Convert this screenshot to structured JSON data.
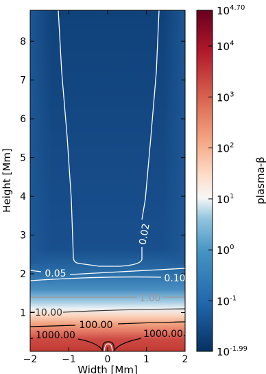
{
  "chart_data": {
    "type": "heatmap",
    "xlabel": "Width [Mm]",
    "ylabel": "Height [Mm]",
    "xlim": [
      -2,
      2
    ],
    "ylim": [
      0,
      8.8
    ],
    "x_ticks": [
      "−2",
      "−1",
      "0",
      "1",
      "2"
    ],
    "x_tick_values": [
      -2,
      -1,
      0,
      1,
      2
    ],
    "y_ticks": [
      "1",
      "2",
      "3",
      "4",
      "5",
      "6",
      "7",
      "8"
    ],
    "y_tick_values": [
      1,
      2,
      3,
      4,
      5,
      6,
      7,
      8
    ],
    "colorbar": {
      "label": "plasma-β",
      "scale": "log",
      "min_exponent": -1.99,
      "max_exponent": 4.7,
      "colormap": "RdBu_r",
      "tick_exponents": [
        "-1.99",
        "-1",
        "0",
        "1",
        "2",
        "3",
        "4",
        "4.70"
      ],
      "tick_values": [
        -1.99,
        -1,
        0,
        1,
        2,
        3,
        4,
        4.7
      ]
    },
    "contours": [
      {
        "label": "0.02",
        "level": 0.02,
        "color": "#ffffff"
      },
      {
        "label": "0.05",
        "level": 0.05,
        "color": "#ffffff"
      },
      {
        "label": "0.10",
        "level": 0.1,
        "color": "#ffffff"
      },
      {
        "label": "1.00",
        "level": 1.0,
        "color": "#9a9a9a"
      },
      {
        "label": "10.00",
        "level": 10.0,
        "color": "#222222"
      },
      {
        "label": "100.00",
        "level": 100.0,
        "color": "#000000"
      },
      {
        "label": "1000.00",
        "level": 1000.0,
        "color": "#000000"
      }
    ],
    "grid": false
  }
}
